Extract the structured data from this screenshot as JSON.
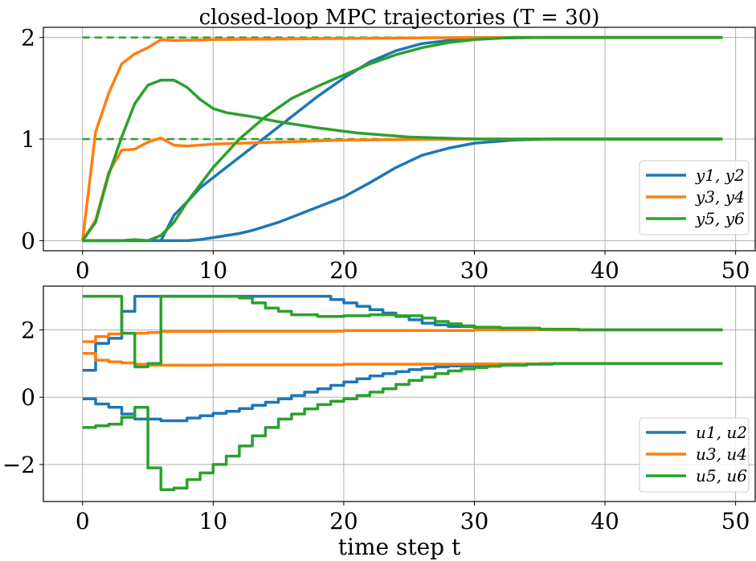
{
  "chart_data": [
    {
      "type": "line",
      "title": "closed-loop MPC trajectories (T = 30)",
      "xlabel": "",
      "ylabel": "",
      "xlim": [
        -3,
        51.5
      ],
      "ylim": [
        -0.1,
        2.1
      ],
      "xticks": [
        0,
        10,
        20,
        30,
        40,
        50
      ],
      "xtick_labels": [
        "0",
        "10",
        "20",
        "30",
        "40",
        "50"
      ],
      "yticks": [
        0,
        1,
        2
      ],
      "ytick_labels": [
        "0",
        "1",
        "2"
      ],
      "grid": true,
      "legend": {
        "position": "lower right",
        "entries": [
          {
            "label": "y1, y2",
            "color": "#1f77b4"
          },
          {
            "label": "y3, y4",
            "color": "#ff7f0e"
          },
          {
            "label": "y5, y6",
            "color": "#2ca02c"
          }
        ]
      },
      "references": [
        {
          "y": 2,
          "x": [
            0,
            49
          ],
          "color": "#2ca02c",
          "dashed": true
        },
        {
          "y": 1,
          "x": [
            0,
            49
          ],
          "color": "#2ca02c",
          "dashed": true
        }
      ],
      "series": [
        {
          "color": "#1f77b4",
          "step": false,
          "points": [
            [
              0,
              0
            ],
            [
              5,
              0
            ],
            [
              6,
              0
            ],
            [
              7,
              0.25
            ],
            [
              8,
              0.38
            ],
            [
              9,
              0.52
            ],
            [
              10,
              0.62
            ],
            [
              12,
              0.82
            ],
            [
              14,
              1.02
            ],
            [
              16,
              1.22
            ],
            [
              18,
              1.42
            ],
            [
              20,
              1.6
            ],
            [
              22,
              1.76
            ],
            [
              24,
              1.87
            ],
            [
              26,
              1.94
            ],
            [
              28,
              1.97
            ],
            [
              30,
              1.99
            ],
            [
              35,
              2.0
            ],
            [
              49,
              2.0
            ]
          ]
        },
        {
          "color": "#1f77b4",
          "step": false,
          "points": [
            [
              0,
              0
            ],
            [
              7,
              0
            ],
            [
              8,
              0
            ],
            [
              9,
              0.01
            ],
            [
              10,
              0.03
            ],
            [
              12,
              0.07
            ],
            [
              13,
              0.1
            ],
            [
              15,
              0.18
            ],
            [
              17,
              0.28
            ],
            [
              20,
              0.43
            ],
            [
              22,
              0.57
            ],
            [
              24,
              0.72
            ],
            [
              26,
              0.84
            ],
            [
              28,
              0.91
            ],
            [
              30,
              0.96
            ],
            [
              33,
              0.99
            ],
            [
              36,
              1.0
            ],
            [
              49,
              1.0
            ]
          ]
        },
        {
          "color": "#ff7f0e",
          "step": false,
          "points": [
            [
              0,
              0
            ],
            [
              1,
              1.07
            ],
            [
              2,
              1.45
            ],
            [
              3,
              1.74
            ],
            [
              4,
              1.84
            ],
            [
              5,
              1.9
            ],
            [
              6,
              1.98
            ],
            [
              7,
              1.97
            ],
            [
              10,
              1.98
            ],
            [
              20,
              1.99
            ],
            [
              30,
              2.0
            ],
            [
              49,
              2.0
            ]
          ]
        },
        {
          "color": "#ff7f0e",
          "step": false,
          "points": [
            [
              0,
              0
            ],
            [
              1,
              0.2
            ],
            [
              2,
              0.67
            ],
            [
              3,
              0.89
            ],
            [
              4,
              0.9
            ],
            [
              5,
              0.97
            ],
            [
              6,
              1.01
            ],
            [
              7,
              0.94
            ],
            [
              8,
              0.93
            ],
            [
              10,
              0.95
            ],
            [
              15,
              0.97
            ],
            [
              20,
              0.99
            ],
            [
              30,
              1.0
            ],
            [
              49,
              1.0
            ]
          ]
        },
        {
          "color": "#2ca02c",
          "step": false,
          "points": [
            [
              0,
              0
            ],
            [
              1,
              0.18
            ],
            [
              2,
              0.65
            ],
            [
              3,
              1.02
            ],
            [
              4,
              1.35
            ],
            [
              5,
              1.53
            ],
            [
              6,
              1.58
            ],
            [
              7,
              1.58
            ],
            [
              8,
              1.51
            ],
            [
              9,
              1.39
            ],
            [
              10,
              1.3
            ],
            [
              11,
              1.26
            ],
            [
              13,
              1.22
            ],
            [
              15,
              1.17
            ],
            [
              18,
              1.11
            ],
            [
              21,
              1.06
            ],
            [
              25,
              1.02
            ],
            [
              30,
              1.0
            ],
            [
              49,
              1.0
            ]
          ]
        },
        {
          "color": "#2ca02c",
          "step": false,
          "points": [
            [
              0,
              0
            ],
            [
              3,
              0
            ],
            [
              4,
              0.01
            ],
            [
              5,
              0
            ],
            [
              6,
              0.05
            ],
            [
              7,
              0.18
            ],
            [
              8,
              0.38
            ],
            [
              10,
              0.72
            ],
            [
              12,
              1.0
            ],
            [
              14,
              1.22
            ],
            [
              16,
              1.4
            ],
            [
              18,
              1.52
            ],
            [
              20,
              1.63
            ],
            [
              22,
              1.74
            ],
            [
              24,
              1.83
            ],
            [
              26,
              1.9
            ],
            [
              28,
              1.95
            ],
            [
              30,
              1.98
            ],
            [
              33,
              2.0
            ],
            [
              49,
              2.0
            ]
          ]
        }
      ]
    },
    {
      "type": "line",
      "title": "",
      "xlabel": "time step t",
      "ylabel": "",
      "xlim": [
        -3,
        51.5
      ],
      "ylim": [
        -3.1,
        3.3
      ],
      "xticks": [
        0,
        10,
        20,
        30,
        40,
        50
      ],
      "xtick_labels": [
        "0",
        "10",
        "20",
        "30",
        "40",
        "50"
      ],
      "yticks": [
        -2,
        0,
        2
      ],
      "ytick_labels": [
        "−2",
        "0",
        "2"
      ],
      "grid": true,
      "legend": {
        "position": "lower right",
        "entries": [
          {
            "label": "u1, u2",
            "color": "#1f77b4"
          },
          {
            "label": "u3, u4",
            "color": "#ff7f0e"
          },
          {
            "label": "u5, u6",
            "color": "#2ca02c"
          }
        ]
      },
      "references": [],
      "series": [
        {
          "color": "#1f77b4",
          "step": true,
          "points": [
            [
              0,
              0.8
            ],
            [
              1,
              1.6
            ],
            [
              2,
              1.75
            ],
            [
              3,
              2.55
            ],
            [
              4,
              3.0
            ],
            [
              19,
              2.9
            ],
            [
              20,
              2.8
            ],
            [
              21,
              2.7
            ],
            [
              22,
              2.6
            ],
            [
              23,
              2.5
            ],
            [
              24,
              2.4
            ],
            [
              25,
              2.3
            ],
            [
              26,
              2.2
            ],
            [
              27,
              2.15
            ],
            [
              28,
              2.1
            ],
            [
              30,
              2.05
            ],
            [
              32,
              2.02
            ],
            [
              36,
              2.0
            ],
            [
              49,
              2.0
            ]
          ]
        },
        {
          "color": "#1f77b4",
          "step": true,
          "points": [
            [
              0,
              -0.05
            ],
            [
              1,
              -0.2
            ],
            [
              2,
              -0.3
            ],
            [
              3,
              -0.5
            ],
            [
              4,
              -0.65
            ],
            [
              6,
              -0.7
            ],
            [
              8,
              -0.62
            ],
            [
              9,
              -0.55
            ],
            [
              10,
              -0.48
            ],
            [
              11,
              -0.42
            ],
            [
              12,
              -0.34
            ],
            [
              13,
              -0.24
            ],
            [
              14,
              -0.15
            ],
            [
              15,
              -0.05
            ],
            [
              16,
              0.05
            ],
            [
              17,
              0.15
            ],
            [
              18,
              0.25
            ],
            [
              19,
              0.35
            ],
            [
              20,
              0.45
            ],
            [
              21,
              0.55
            ],
            [
              22,
              0.63
            ],
            [
              23,
              0.7
            ],
            [
              24,
              0.76
            ],
            [
              25,
              0.82
            ],
            [
              26,
              0.86
            ],
            [
              27,
              0.9
            ],
            [
              28,
              0.93
            ],
            [
              30,
              0.96
            ],
            [
              33,
              0.99
            ],
            [
              36,
              1.0
            ],
            [
              49,
              1.0
            ]
          ]
        },
        {
          "color": "#ff7f0e",
          "step": true,
          "points": [
            [
              0,
              1.65
            ],
            [
              1,
              1.8
            ],
            [
              2,
              1.88
            ],
            [
              3,
              1.9
            ],
            [
              5,
              1.92
            ],
            [
              6,
              1.95
            ],
            [
              10,
              1.96
            ],
            [
              20,
              1.98
            ],
            [
              30,
              2.0
            ],
            [
              49,
              2.0
            ]
          ]
        },
        {
          "color": "#ff7f0e",
          "step": true,
          "points": [
            [
              0,
              1.3
            ],
            [
              1,
              1.1
            ],
            [
              2,
              1.05
            ],
            [
              3,
              1.02
            ],
            [
              4,
              0.98
            ],
            [
              5,
              0.95
            ],
            [
              10,
              0.96
            ],
            [
              20,
              0.98
            ],
            [
              30,
              0.99
            ],
            [
              35,
              1.0
            ],
            [
              49,
              1.0
            ]
          ]
        },
        {
          "color": "#2ca02c",
          "step": true,
          "points": [
            [
              0,
              3.0
            ],
            [
              3,
              1.9
            ],
            [
              4,
              0.9
            ],
            [
              5,
              1.0
            ],
            [
              6,
              3.0
            ],
            [
              12,
              2.95
            ],
            [
              13,
              2.8
            ],
            [
              14,
              2.65
            ],
            [
              15,
              2.55
            ],
            [
              16,
              2.45
            ],
            [
              18,
              2.4
            ],
            [
              20,
              2.42
            ],
            [
              22,
              2.45
            ],
            [
              24,
              2.42
            ],
            [
              26,
              2.35
            ],
            [
              27,
              2.25
            ],
            [
              28,
              2.18
            ],
            [
              29,
              2.12
            ],
            [
              30,
              2.08
            ],
            [
              32,
              2.05
            ],
            [
              35,
              2.02
            ],
            [
              38,
              2.0
            ],
            [
              49,
              2.0
            ]
          ]
        },
        {
          "color": "#2ca02c",
          "step": true,
          "points": [
            [
              0,
              -0.9
            ],
            [
              1,
              -0.85
            ],
            [
              2,
              -0.8
            ],
            [
              3,
              -0.6
            ],
            [
              4,
              -0.3
            ],
            [
              5,
              -2.1
            ],
            [
              6,
              -2.75
            ],
            [
              7,
              -2.7
            ],
            [
              8,
              -2.45
            ],
            [
              9,
              -2.25
            ],
            [
              10,
              -2.0
            ],
            [
              11,
              -1.75
            ],
            [
              12,
              -1.45
            ],
            [
              13,
              -1.15
            ],
            [
              14,
              -0.9
            ],
            [
              15,
              -0.65
            ],
            [
              16,
              -0.5
            ],
            [
              17,
              -0.35
            ],
            [
              18,
              -0.22
            ],
            [
              19,
              -0.12
            ],
            [
              20,
              -0.05
            ],
            [
              21,
              0.05
            ],
            [
              22,
              0.15
            ],
            [
              23,
              0.25
            ],
            [
              24,
              0.38
            ],
            [
              25,
              0.5
            ],
            [
              26,
              0.6
            ],
            [
              27,
              0.7
            ],
            [
              28,
              0.78
            ],
            [
              29,
              0.84
            ],
            [
              30,
              0.88
            ],
            [
              31,
              0.92
            ],
            [
              32,
              0.95
            ],
            [
              34,
              0.98
            ],
            [
              36,
              1.0
            ],
            [
              49,
              1.0
            ]
          ]
        }
      ]
    }
  ]
}
